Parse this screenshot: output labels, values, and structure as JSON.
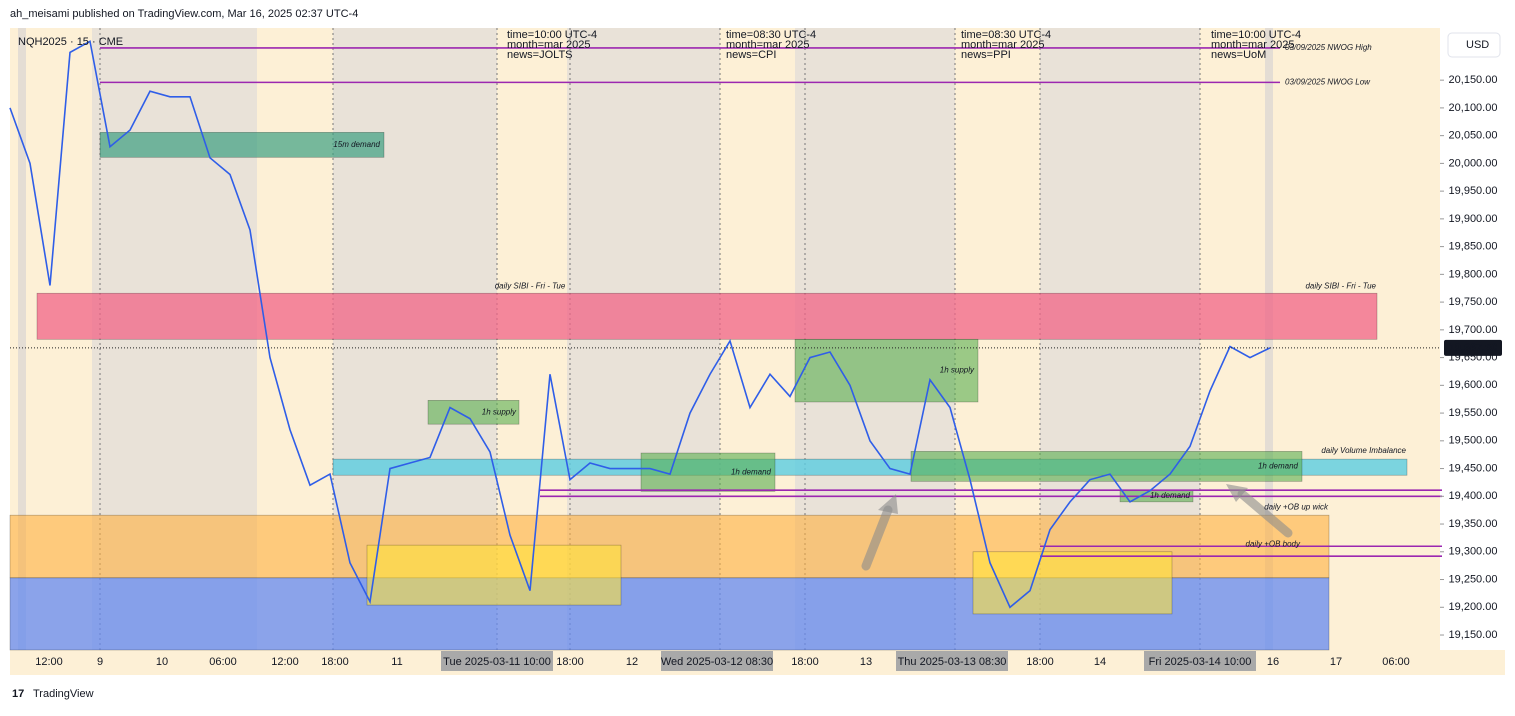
{
  "header": {
    "publisher": "ah_meisami published on TradingView.com, Mar 16, 2025 02:37 UTC-4"
  },
  "chart_data": {
    "type": "line",
    "symbol": "NQH2025 · 15 · CME",
    "currency": "USD",
    "color": "#2f5ee8",
    "values": [
      20100,
      20000,
      19780,
      20200,
      20220,
      20030,
      20060,
      20130,
      20120,
      20120,
      20010,
      19980,
      19880,
      19650,
      19520,
      19420,
      19440,
      19280,
      19210,
      19450,
      19460,
      19470,
      19560,
      19540,
      19480,
      19330,
      19230,
      19620,
      19430,
      19460,
      19450,
      19450,
      19450,
      19440,
      19550,
      19620,
      19680,
      19560,
      19620,
      19580,
      19650,
      19660,
      19600,
      19500,
      19450,
      19440,
      19610,
      19560,
      19430,
      19280,
      19200,
      19230,
      19340,
      19390,
      19430,
      19440,
      19390,
      19410,
      19440,
      19490,
      19590,
      19670,
      19650,
      19667.5
    ],
    "ylim": [
      19123,
      20244
    ],
    "yticks": [
      {
        "value": 20150,
        "label": "20,150.00"
      },
      {
        "value": 20100,
        "label": "20,100.00"
      },
      {
        "value": 20050,
        "label": "20,050.00"
      },
      {
        "value": 20000,
        "label": "20,000.00"
      },
      {
        "value": 19950,
        "label": "19,950.00"
      },
      {
        "value": 19900,
        "label": "19,900.00"
      },
      {
        "value": 19850,
        "label": "19,850.00"
      },
      {
        "value": 19800,
        "label": "19,800.00"
      },
      {
        "value": 19750,
        "label": "19,750.00"
      },
      {
        "value": 19700,
        "label": "19,700.00"
      },
      {
        "value": 19650,
        "label": "19,650.00"
      },
      {
        "value": 19600,
        "label": "19,600.00"
      },
      {
        "value": 19550,
        "label": "19,550.00"
      },
      {
        "value": 19500,
        "label": "19,500.00"
      },
      {
        "value": 19450,
        "label": "19,450.00"
      },
      {
        "value": 19400,
        "label": "19,400.00"
      },
      {
        "value": 19350,
        "label": "19,350.00"
      },
      {
        "value": 19300,
        "label": "19,300.00"
      },
      {
        "value": 19250,
        "label": "19,250.00"
      },
      {
        "value": 19200,
        "label": "19,200.00"
      },
      {
        "value": 19150,
        "label": "19,150.00"
      }
    ],
    "last_price": {
      "value": 19667.5,
      "label": "19,667.50"
    },
    "x_labels": [
      "12:00",
      "9",
      "10",
      "06:00",
      "12:00",
      "18:00",
      "11",
      "Tue 2025-03-11   10:00",
      "18:00",
      "12",
      "Wed 2025-03-12   08:30",
      "18:00",
      "13",
      "Thu 2025-03-13   08:30",
      "18:00",
      "14",
      "Fri 2025-03-14   10:00",
      "16",
      "17",
      "06:00"
    ],
    "zones": [
      {
        "label": "daily +OB body",
        "top": 19366,
        "bottom": 19253,
        "color": "rgba(255,176,64,0.6)"
      },
      {
        "top": 19253,
        "bottom": 19123,
        "color": "rgba(100,138,240,0.75)"
      },
      {
        "top": 19312,
        "bottom": 19204,
        "color": "rgba(255,226,60,0.6)"
      },
      {
        "top": 19300,
        "bottom": 19188,
        "color": "rgba(255,226,60,0.6)"
      },
      {
        "label": "daily SIBI - Fri - Tue",
        "top": 19766,
        "bottom": 19683,
        "color": "rgba(240,100,135,0.75)"
      },
      {
        "label": "daily Volume Imbalance",
        "top": 19467,
        "bottom": 19438,
        "color": "rgba(90,205,225,0.8)"
      },
      {
        "label": "15m demand",
        "top": 20056,
        "bottom": 20011,
        "color": "rgba(60,160,130,0.7)"
      },
      {
        "label": "1h supply",
        "top": 19573,
        "bottom": 19530,
        "color": "rgba(90,175,80,0.6)"
      },
      {
        "label": "1h demand",
        "top": 19478,
        "bottom": 19409,
        "color": "rgba(90,175,80,0.6)"
      },
      {
        "label": "1h supply",
        "top": 19683,
        "bottom": 19570,
        "color": "rgba(90,175,80,0.6)"
      },
      {
        "label": "1h demand",
        "top": 19481,
        "bottom": 19427,
        "color": "rgba(90,175,80,0.6)"
      },
      {
        "label": "1h demand",
        "top": 19411,
        "bottom": 19390,
        "color": "rgba(90,175,80,0.6)"
      }
    ],
    "lines": [
      {
        "label": "03/09/2025 NWOG High",
        "value": 20208,
        "color": "#9c27b0"
      },
      {
        "label": "03/09/2025 NWOG Low",
        "value": 20146,
        "color": "#9c27b0"
      },
      {
        "label": "daily +OB up wick",
        "value": 19411,
        "color": "#9c27b0"
      },
      {
        "value": 19400,
        "color": "#9c27b0"
      },
      {
        "value": 19310,
        "color": "#9c27b0"
      },
      {
        "value": 19292,
        "color": "#9c27b0"
      }
    ],
    "news": [
      [
        "time=10:00 UTC-4",
        "month=mar 2025",
        "news=JOLTS"
      ],
      [
        "time=08:30 UTC-4",
        "month=mar 2025",
        "news=CPI"
      ],
      [
        "time=08:30 UTC-4",
        "month=mar 2025",
        "news=PPI"
      ],
      [
        "time=10:00 UTC-4",
        "month=mar 2025",
        "news=UoM"
      ]
    ]
  },
  "footer": {
    "brand": "TradingView"
  }
}
